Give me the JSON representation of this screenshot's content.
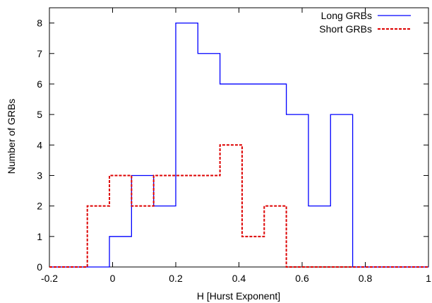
{
  "chart_data": {
    "type": "histogram-step",
    "xlabel": "H [Hurst Exponent]",
    "ylabel": "Number of GRBs",
    "xlim": [
      -0.2,
      1.0
    ],
    "ylim": [
      0,
      8.5
    ],
    "x_ticks": [
      -0.2,
      0,
      0.2,
      0.4,
      0.6,
      0.8,
      1.0
    ],
    "x_tick_labels": [
      "-0.2",
      "0",
      "0.2",
      "0.4",
      "0.6",
      "0.8",
      "1"
    ],
    "y_ticks": [
      0,
      1,
      2,
      3,
      4,
      5,
      6,
      7,
      8
    ],
    "y_tick_labels": [
      "0",
      "1",
      "2",
      "3",
      "4",
      "5",
      "6",
      "7",
      "8"
    ],
    "grid": false,
    "legend_position": "top-right",
    "series": [
      {
        "name": "Long GRBs",
        "color": "#0000ff",
        "line_style": "solid",
        "bins": [
          {
            "x0": -0.2,
            "x1": -0.01,
            "count": 0
          },
          {
            "x0": -0.01,
            "x1": 0.06,
            "count": 1
          },
          {
            "x0": 0.06,
            "x1": 0.13,
            "count": 3
          },
          {
            "x0": 0.13,
            "x1": 0.2,
            "count": 2
          },
          {
            "x0": 0.2,
            "x1": 0.27,
            "count": 8
          },
          {
            "x0": 0.27,
            "x1": 0.34,
            "count": 7
          },
          {
            "x0": 0.34,
            "x1": 0.41,
            "count": 6
          },
          {
            "x0": 0.41,
            "x1": 0.48,
            "count": 6
          },
          {
            "x0": 0.48,
            "x1": 0.55,
            "count": 6
          },
          {
            "x0": 0.55,
            "x1": 0.62,
            "count": 5
          },
          {
            "x0": 0.62,
            "x1": 0.69,
            "count": 2
          },
          {
            "x0": 0.69,
            "x1": 0.76,
            "count": 5
          },
          {
            "x0": 0.76,
            "x1": 1.0,
            "count": 0
          }
        ]
      },
      {
        "name": "Short GRBs",
        "color": "#dd0000",
        "line_style": "dashed",
        "bins": [
          {
            "x0": -0.2,
            "x1": -0.08,
            "count": 0
          },
          {
            "x0": -0.08,
            "x1": -0.01,
            "count": 2
          },
          {
            "x0": -0.01,
            "x1": 0.06,
            "count": 3
          },
          {
            "x0": 0.06,
            "x1": 0.13,
            "count": 2
          },
          {
            "x0": 0.13,
            "x1": 0.2,
            "count": 3
          },
          {
            "x0": 0.2,
            "x1": 0.27,
            "count": 3
          },
          {
            "x0": 0.27,
            "x1": 0.34,
            "count": 3
          },
          {
            "x0": 0.34,
            "x1": 0.41,
            "count": 4
          },
          {
            "x0": 0.41,
            "x1": 0.48,
            "count": 1
          },
          {
            "x0": 0.48,
            "x1": 0.55,
            "count": 2
          },
          {
            "x0": 0.55,
            "x1": 1.0,
            "count": 0
          }
        ]
      }
    ]
  }
}
